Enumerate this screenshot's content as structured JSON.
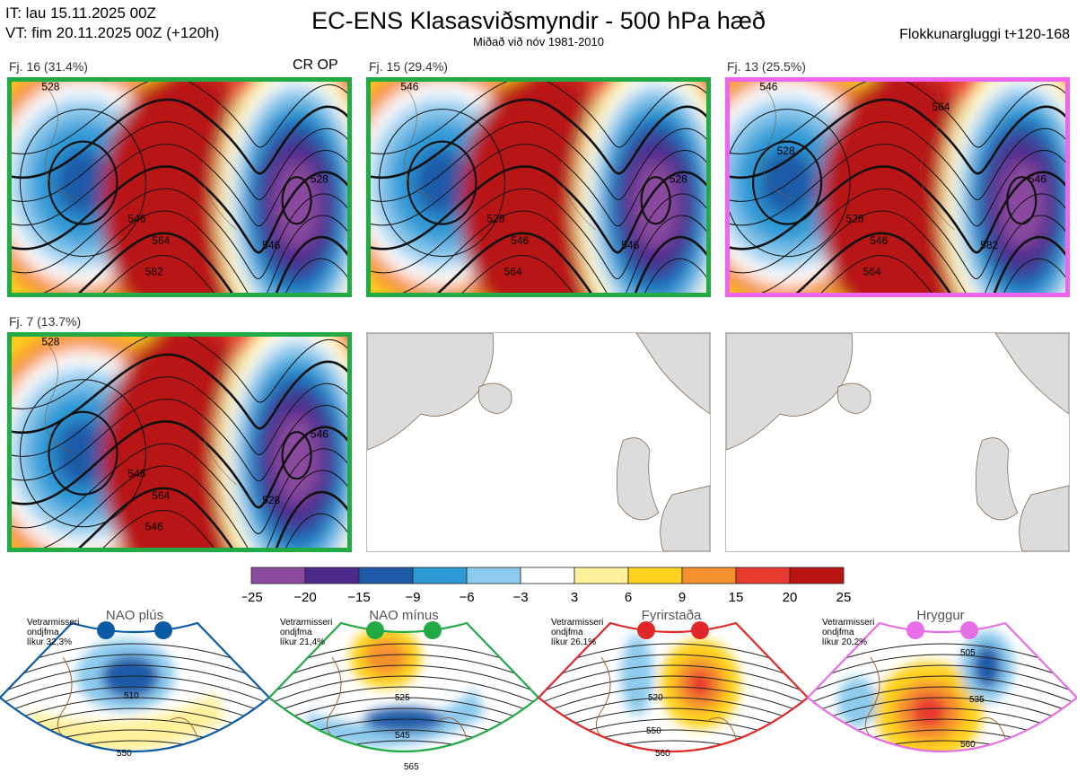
{
  "header": {
    "it": "IT: lau 15.11.2025 00Z",
    "vt": "VT: fim 20.11.2025 00Z  (+120h)",
    "title": "EC-ENS Klasasviðsmyndir - 500 hPa hæð",
    "subtitle": "Miðað við nóv 1981-2010",
    "window": "Flokkunargluggi t+120-168"
  },
  "panels": [
    {
      "label": "Fj. 16 (31.4%)",
      "tag": "CR OP",
      "border": "#22aa44",
      "contours": [
        "528",
        "546",
        "564",
        "582",
        "546",
        "528"
      ]
    },
    {
      "label": "Fj. 15 (29.4%)",
      "tag": "",
      "border": "#22aa44",
      "contours": [
        "546",
        "528",
        "546",
        "564",
        "546",
        "528"
      ]
    },
    {
      "label": "Fj. 13 (25.5%)",
      "tag": "",
      "border": "#ee66ee",
      "contours": [
        "546",
        "528",
        "546",
        "564",
        "582",
        "546",
        "528",
        "564"
      ]
    },
    {
      "label": "Fj. 7 (13.7%)",
      "tag": "",
      "border": "#22aa44",
      "contours": [
        "528",
        "546",
        "564",
        "546",
        "528",
        "546"
      ]
    }
  ],
  "colorbar": {
    "ticks": [
      "−25",
      "−20",
      "−15",
      "−9",
      "−6",
      "−3",
      "3",
      "6",
      "9",
      "15",
      "20",
      "25"
    ],
    "colors": [
      "#8a4a9e",
      "#4b2a8c",
      "#1f5aa8",
      "#2d9ad6",
      "#8ccbee",
      "#ffffff",
      "#fff09a",
      "#ffd21f",
      "#f5902e",
      "#e83a2e",
      "#b81414"
    ]
  },
  "chart_data": [
    {
      "type": "heatmap",
      "name": "Fj. 16",
      "share_percent": 31.4
    },
    {
      "type": "heatmap",
      "name": "Fj. 15",
      "share_percent": 29.4
    },
    {
      "type": "heatmap",
      "name": "Fj. 13",
      "share_percent": 25.5
    },
    {
      "type": "heatmap",
      "name": "Fj. 7",
      "share_percent": 13.7
    }
  ],
  "regimes": [
    {
      "name": "NAO plús",
      "meta": [
        "Vetrarmisseri",
        "ondjfma",
        "líkur 32,3%"
      ],
      "color": "#0b5aa6",
      "labels": [
        "510",
        "550"
      ]
    },
    {
      "name": "NAO mínus",
      "meta": [
        "Vetrarmisseri",
        "ondjfma",
        "líkur 21,4%"
      ],
      "color": "#22aa44",
      "labels": [
        "525",
        "545",
        "565"
      ]
    },
    {
      "name": "Fyrirstaða",
      "meta": [
        "Vetrarmisseri",
        "ondjfma",
        "líkur 26,1%"
      ],
      "color": "#e02828",
      "labels": [
        "520",
        "550",
        "560"
      ]
    },
    {
      "name": "Hryggur",
      "meta": [
        "Vetrarmisseri",
        "ondjfma",
        "líkur 20,2%"
      ],
      "color": "#e66ee6",
      "labels": [
        "505",
        "535",
        "560"
      ]
    }
  ]
}
